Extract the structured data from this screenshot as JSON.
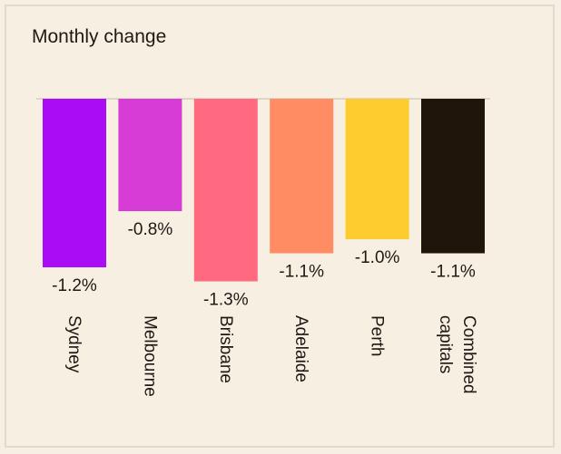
{
  "chart_data": {
    "type": "bar",
    "title": "Monthly change",
    "categories": [
      "Sydney",
      "Melbourne",
      "Brisbane",
      "Adelaide",
      "Perth",
      "Combined capitals"
    ],
    "values": [
      -1.2,
      -0.8,
      -1.3,
      -1.1,
      -1.0,
      -1.1
    ],
    "value_labels": [
      "-1.2%",
      "-0.8%",
      "-1.3%",
      "-1.1%",
      "-1.0%",
      "-1.1%"
    ],
    "category_label_lines": [
      [
        "Sydney"
      ],
      [
        "Melbourne"
      ],
      [
        "Brisbane"
      ],
      [
        "Adelaide"
      ],
      [
        "Perth"
      ],
      [
        "Combined",
        "capitals"
      ]
    ],
    "colors": [
      "#aa0cf5",
      "#d83cd6",
      "#ff6a80",
      "#ff8c62",
      "#ffcc30",
      "#1f150b"
    ],
    "ylim": [
      -1.3,
      0
    ],
    "grid": false,
    "legend": "none",
    "xlabel": "",
    "ylabel": ""
  }
}
